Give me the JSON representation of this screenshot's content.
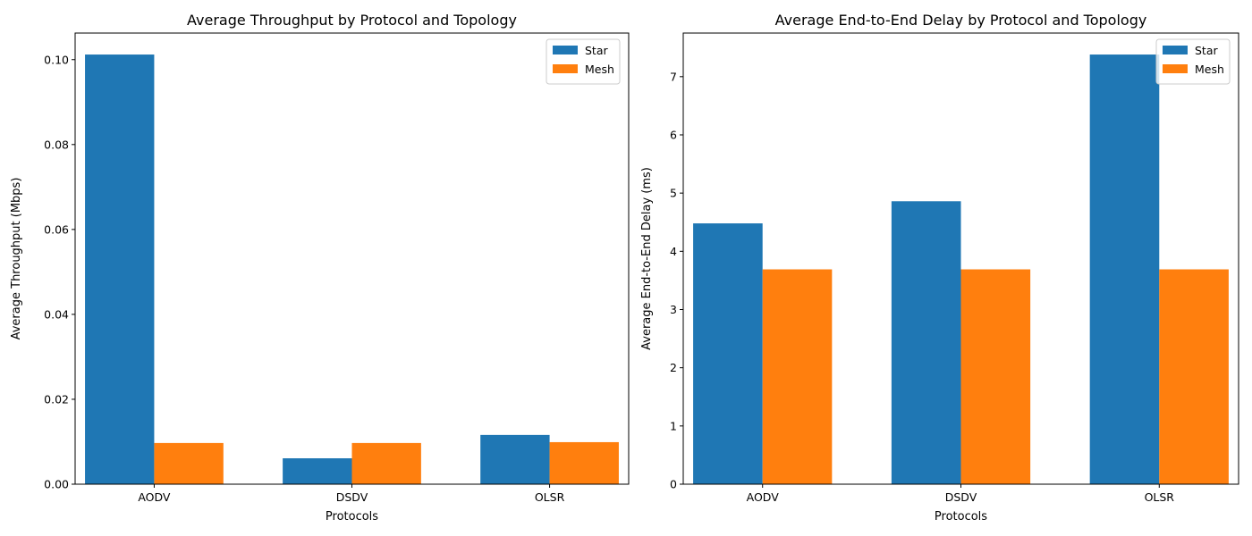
{
  "chart_data": [
    {
      "type": "bar",
      "title": "Average Throughput by Protocol and Topology",
      "xlabel": "Protocols",
      "ylabel": "Average Throughput (Mbps)",
      "categories": [
        "AODV",
        "DSDV",
        "OLSR"
      ],
      "series": [
        {
          "name": "Star",
          "color": "#1f77b4",
          "values": [
            0.1012,
            0.0061,
            0.0116
          ]
        },
        {
          "name": "Mesh",
          "color": "#ff7f0e",
          "values": [
            0.0097,
            0.0097,
            0.0099
          ]
        }
      ],
      "ylim": [
        0,
        0.10626
      ],
      "yticks": [
        0.0,
        0.02,
        0.04,
        0.06,
        0.08,
        0.1
      ],
      "ytick_labels": [
        "0.00",
        "0.02",
        "0.04",
        "0.06",
        "0.08",
        "0.10"
      ],
      "legend_position": "top-right",
      "grid": false
    },
    {
      "type": "bar",
      "title": "Average End-to-End Delay by Protocol and Topology",
      "xlabel": "Protocols",
      "ylabel": "Average End-to-End Delay (ms)",
      "categories": [
        "AODV",
        "DSDV",
        "OLSR"
      ],
      "series": [
        {
          "name": "Star",
          "color": "#1f77b4",
          "values": [
            4.48,
            4.86,
            7.38
          ]
        },
        {
          "name": "Mesh",
          "color": "#ff7f0e",
          "values": [
            3.69,
            3.69,
            3.69
          ]
        }
      ],
      "ylim": [
        0,
        7.749
      ],
      "yticks": [
        0,
        1,
        2,
        3,
        4,
        5,
        6,
        7
      ],
      "ytick_labels": [
        "0",
        "1",
        "2",
        "3",
        "4",
        "5",
        "6",
        "7"
      ],
      "legend_position": "top-right",
      "grid": false
    }
  ]
}
